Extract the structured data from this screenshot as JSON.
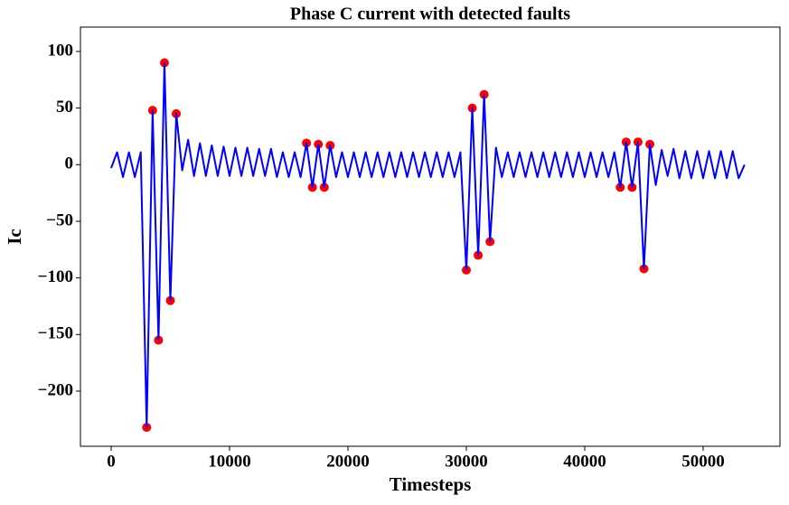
{
  "chart_data": {
    "type": "line",
    "title": "Phase C current with detected faults",
    "xlabel": "Timesteps",
    "ylabel": "Ic",
    "xlim": [
      -2595,
      56490
    ],
    "ylim": [
      -248.7,
      121.5
    ],
    "xticks": [
      0,
      10000,
      20000,
      30000,
      40000,
      50000
    ],
    "yticks": [
      {
        "value": -200,
        "label": "−200"
      },
      {
        "value": -150,
        "label": "−150"
      },
      {
        "value": -100,
        "label": "−100"
      },
      {
        "value": -50,
        "label": "−50"
      },
      0,
      50,
      100
    ],
    "grid": false,
    "series": [
      {
        "style": "markers",
        "color": "#ff0000",
        "x": [
          3000,
          3500,
          4000,
          4500,
          5000,
          5500,
          16500,
          17000,
          17500,
          18000,
          18500,
          30000,
          30500,
          31000,
          31500,
          32000,
          43000,
          43500,
          44000,
          44500,
          45000,
          45500
        ],
        "values": [
          -232,
          48,
          -155,
          90,
          -120,
          45,
          19,
          -20,
          18,
          -20,
          17,
          -93,
          50,
          -80,
          62,
          -68,
          -20,
          20,
          -20,
          20,
          -92,
          18
        ]
      },
      {
        "style": "line",
        "color": "#0000ff",
        "x": [
          0,
          500,
          1000,
          1500,
          2000,
          2500,
          3000,
          3500,
          4000,
          4500,
          5000,
          5500,
          6000,
          6500,
          7000,
          7500,
          8000,
          8500,
          9000,
          9500,
          10000,
          10500,
          11000,
          11500,
          12000,
          12500,
          13000,
          13500,
          14000,
          14500,
          15000,
          15500,
          16000,
          16500,
          17000,
          17500,
          18000,
          18500,
          19000,
          19500,
          20000,
          20500,
          21000,
          21500,
          22000,
          22500,
          23000,
          23500,
          24000,
          24500,
          25000,
          25500,
          26000,
          26500,
          27000,
          27500,
          28000,
          28500,
          29000,
          29500,
          30000,
          30500,
          31000,
          31500,
          32000,
          32500,
          33000,
          33500,
          34000,
          34500,
          35000,
          35500,
          36000,
          36500,
          37000,
          37500,
          38000,
          38500,
          39000,
          39500,
          40000,
          40500,
          41000,
          41500,
          42000,
          42500,
          43000,
          43500,
          44000,
          44500,
          45000,
          45500,
          46000,
          46500,
          47000,
          47500,
          48000,
          48500,
          49000,
          49500,
          50000,
          50500,
          51000,
          51500,
          52000,
          52500,
          53000,
          53500
        ],
        "values": [
          -3,
          11,
          -11,
          11,
          -11,
          11,
          -232,
          48,
          -155,
          90,
          -120,
          45,
          -5,
          22,
          -10,
          19,
          -10,
          17,
          -10,
          16,
          -10,
          15,
          -10,
          15,
          -10,
          14,
          -10,
          14,
          -11,
          11,
          -11,
          11,
          -11,
          19,
          -20,
          18,
          -20,
          17,
          -11,
          11,
          -11,
          11,
          -11,
          11,
          -11,
          11,
          -11,
          11,
          -11,
          11,
          -11,
          11,
          -11,
          11,
          -11,
          11,
          -11,
          11,
          -11,
          11,
          -93,
          50,
          -80,
          62,
          -68,
          15,
          -11,
          11,
          -11,
          11,
          -11,
          11,
          -11,
          11,
          -11,
          11,
          -11,
          11,
          -11,
          11,
          -11,
          11,
          -11,
          11,
          -11,
          11,
          -20,
          20,
          -20,
          20,
          -92,
          18,
          -18,
          13,
          -10,
          14,
          -12,
          12,
          -12,
          12,
          -12,
          12,
          -12,
          12,
          -12,
          12,
          -12,
          0
        ]
      }
    ]
  }
}
